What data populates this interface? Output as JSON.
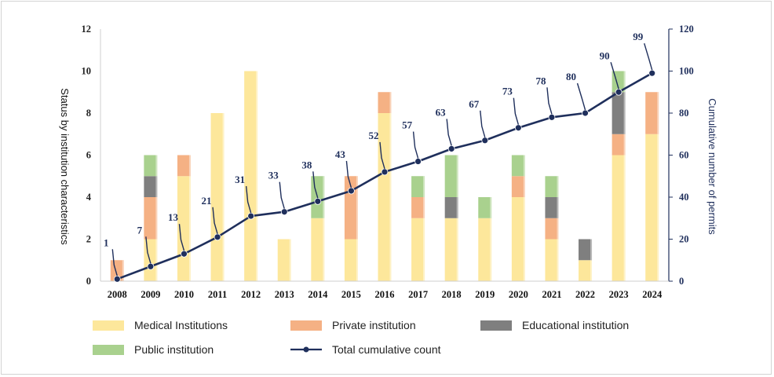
{
  "chart_data": {
    "type": "bar",
    "stacked": true,
    "categories": [
      "2008",
      "2009",
      "2010",
      "2011",
      "2012",
      "2013",
      "2014",
      "2015",
      "2016",
      "2017",
      "2018",
      "2019",
      "2020",
      "2021",
      "2022",
      "2023",
      "2024"
    ],
    "series": [
      {
        "name": "Medical Institutions",
        "color": "#fde79b",
        "values": [
          0,
          2,
          5,
          8,
          10,
          2,
          3,
          2,
          8,
          3,
          3,
          3,
          4,
          2,
          1,
          6,
          7
        ]
      },
      {
        "name": "Private institution",
        "color": "#f5b184",
        "values": [
          1,
          2,
          1,
          0,
          0,
          0,
          0,
          3,
          1,
          1,
          0,
          0,
          1,
          1,
          0,
          1,
          2
        ]
      },
      {
        "name": "Educational institution",
        "color": "#7f7f7f",
        "values": [
          0,
          1,
          0,
          0,
          0,
          0,
          0,
          0,
          0,
          0,
          1,
          0,
          0,
          1,
          1,
          2,
          0
        ]
      },
      {
        "name": "Public institution",
        "color": "#a9d18e",
        "values": [
          0,
          1,
          0,
          0,
          0,
          0,
          2,
          0,
          0,
          1,
          2,
          1,
          1,
          1,
          0,
          1,
          0
        ]
      }
    ],
    "line": {
      "name": "Total cumulative count",
      "color": "#1f2f5c",
      "axis": "right",
      "values": [
        1,
        7,
        13,
        21,
        31,
        33,
        38,
        43,
        52,
        57,
        63,
        67,
        73,
        78,
        80,
        90,
        99
      ]
    },
    "ylabel": "Status by institution characteristics",
    "ylim": [
      0,
      12
    ],
    "yticks": [
      0,
      2,
      4,
      6,
      8,
      10,
      12
    ],
    "y2label": "Cumulative number of permits",
    "y2lim": [
      0,
      120
    ],
    "y2ticks": [
      0,
      20,
      40,
      60,
      80,
      100,
      120
    ],
    "grid": false,
    "legend": {
      "placement": "bottom",
      "items": [
        "Medical Institutions",
        "Private institution",
        "Educational institution",
        "Public institution",
        "Total cumulative count"
      ]
    }
  }
}
